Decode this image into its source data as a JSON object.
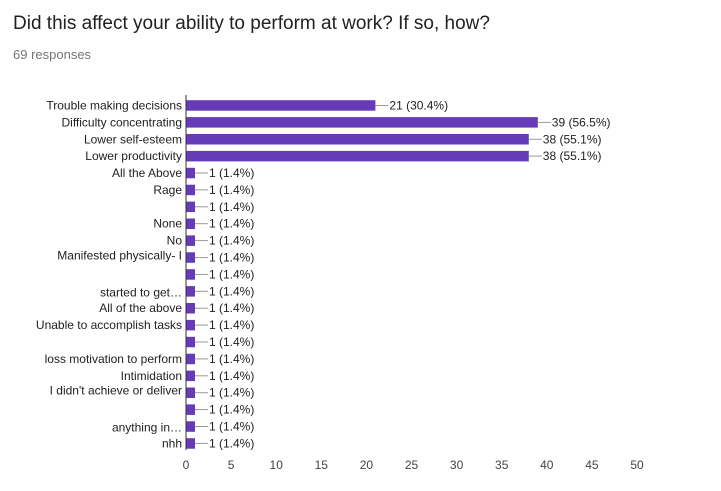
{
  "header": {
    "title": "Did this affect your ability to perform at work? If so, how?",
    "responses": "69 responses"
  },
  "chart_data": {
    "type": "bar",
    "orientation": "horizontal",
    "categories": [
      "Trouble making decisions",
      "Difficulty concentrating",
      "Lower self-esteem",
      "Lower productivity",
      "All the Above",
      "Rage",
      "",
      "None",
      "No",
      "",
      "",
      "",
      "All of the above",
      "Unable to accomplish tasks",
      "",
      "loss motivation to perform",
      "Intimidation",
      "",
      "",
      "",
      "nhh"
    ],
    "wrapped_labels": [
      {
        "lines": [
          "Manifested physically- I",
          "started to get…"
        ],
        "rows": [
          9,
          11
        ]
      },
      {
        "lines": [
          "I didn't achieve or deliver",
          "anything in…"
        ],
        "rows": [
          17,
          19
        ]
      }
    ],
    "values": [
      21,
      39,
      38,
      38,
      1,
      1,
      1,
      1,
      1,
      1,
      1,
      1,
      1,
      1,
      1,
      1,
      1,
      1,
      1,
      1,
      1
    ],
    "data_labels": [
      "21 (30.4%)",
      "39 (56.5%)",
      "38 (55.1%)",
      "38 (55.1%)",
      "1 (1.4%)",
      "1 (1.4%)",
      "1 (1.4%)",
      "1 (1.4%)",
      "1 (1.4%)",
      "1 (1.4%)",
      "1 (1.4%)",
      "1 (1.4%)",
      "1 (1.4%)",
      "1 (1.4%)",
      "1 (1.4%)",
      "1 (1.4%)",
      "1 (1.4%)",
      "1 (1.4%)",
      "1 (1.4%)",
      "1 (1.4%)",
      "1 (1.4%)"
    ],
    "xlim": [
      0,
      50
    ],
    "xticks": [
      0,
      5,
      10,
      15,
      20,
      25,
      30,
      35,
      40,
      45,
      50
    ],
    "bar_color": "#673ab7",
    "grid": false,
    "legend": "none"
  }
}
